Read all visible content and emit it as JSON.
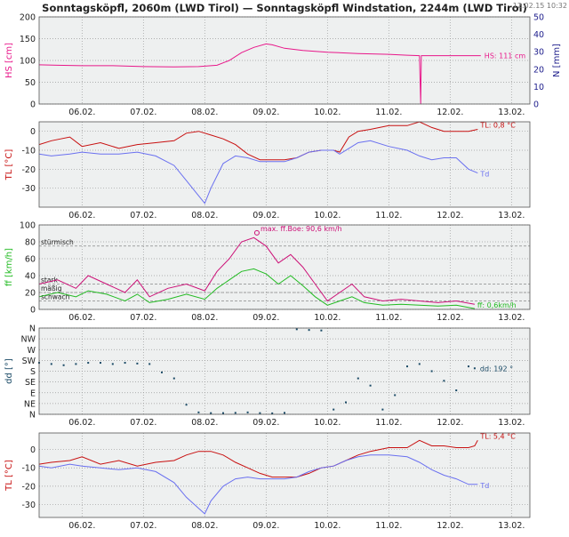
{
  "header": {
    "title": "Sonntagsköpfl, 2060m (LWD Tirol) — Sonntagsköpfl Windstation, 2244m (LWD Tirol)",
    "timestamp": "12.02.15 10:32"
  },
  "colors": {
    "hs": "#e8178a",
    "tl": "#c81010",
    "td": "#6a70f0",
    "ff": "#22bb22",
    "boe": "#cc1077",
    "dd": "#1a4a66",
    "panel_bg": "#eef0f0",
    "grid": "#999999",
    "axis_text": "#222222",
    "right_axis": "#1e1e8c"
  },
  "chart_data": [
    {
      "id": "snow",
      "type": "line",
      "xlabel": "",
      "ylabel": "HS [cm]",
      "y2label": "N [mm]",
      "ylim": [
        0,
        200
      ],
      "y2lim": [
        0,
        50
      ],
      "yticks": [
        0,
        50,
        100,
        150,
        200
      ],
      "y2ticks": [
        0,
        10,
        20,
        30,
        40,
        50
      ],
      "xlim": [
        5.3,
        13.3
      ],
      "xticks": [
        6,
        7,
        8,
        9,
        10,
        11,
        12,
        13
      ],
      "xtick_labels": [
        "06.02.",
        "07.02.",
        "08.02.",
        "09.02.",
        "10.02.",
        "11.02.",
        "12.02.",
        "13.02."
      ],
      "grid": true,
      "label_text": "HS: 111 cm",
      "series": [
        {
          "key": "hs",
          "x": [
            5.3,
            5.6,
            6.0,
            6.5,
            7.0,
            7.5,
            7.9,
            8.2,
            8.4,
            8.6,
            8.8,
            9.0,
            9.1,
            9.3,
            9.6,
            10.0,
            10.5,
            11.0,
            11.3,
            11.5,
            11.52,
            11.53,
            11.56,
            11.8,
            12.0,
            12.3,
            12.5
          ],
          "y": [
            90,
            89,
            88,
            88,
            86,
            85,
            86,
            89,
            100,
            118,
            130,
            138,
            136,
            128,
            123,
            119,
            116,
            114,
            112,
            111,
            0,
            111,
            111,
            111,
            111,
            111,
            111
          ]
        }
      ]
    },
    {
      "id": "temp1",
      "type": "line",
      "xlabel": "",
      "ylabel": "TL [°C]",
      "ylim": [
        -40,
        5
      ],
      "yticks": [
        -30,
        -20,
        -10,
        0
      ],
      "xlim": [
        5.3,
        13.3
      ],
      "xticks": [
        6,
        7,
        8,
        9,
        10,
        11,
        12,
        13
      ],
      "xtick_labels": [
        "06.02.",
        "07.02.",
        "08.02.",
        "09.02.",
        "10.02.",
        "11.02.",
        "12.02.",
        "13.02."
      ],
      "grid": true,
      "label_tl": "TL: 0,8 °C",
      "label_td": "Td",
      "series": [
        {
          "key": "tl",
          "x": [
            5.3,
            5.5,
            5.8,
            6.0,
            6.3,
            6.6,
            6.9,
            7.2,
            7.5,
            7.7,
            7.9,
            8.1,
            8.3,
            8.5,
            8.7,
            8.9,
            9.1,
            9.3,
            9.5,
            9.7,
            9.9,
            10.1,
            10.2,
            10.35,
            10.5,
            10.7,
            11.0,
            11.3,
            11.5,
            11.7,
            11.9,
            12.1,
            12.3,
            12.45
          ],
          "y": [
            -7,
            -5,
            -3,
            -8,
            -6,
            -9,
            -7,
            -6,
            -5,
            -1,
            0,
            -2,
            -4,
            -7,
            -12,
            -15,
            -15,
            -15,
            -14,
            -11,
            -10,
            -10,
            -11,
            -3,
            0,
            1,
            3,
            3,
            5,
            2,
            0,
            0,
            0,
            1
          ]
        },
        {
          "key": "td",
          "x": [
            5.3,
            5.5,
            5.8,
            6.0,
            6.3,
            6.6,
            6.9,
            7.2,
            7.5,
            7.7,
            7.9,
            8.0,
            8.1,
            8.3,
            8.5,
            8.7,
            8.9,
            9.1,
            9.3,
            9.5,
            9.7,
            9.9,
            10.1,
            10.2,
            10.35,
            10.5,
            10.7,
            11.0,
            11.3,
            11.5,
            11.7,
            11.9,
            12.1,
            12.3,
            12.45
          ],
          "y": [
            -12,
            -13,
            -12,
            -11,
            -12,
            -12,
            -11,
            -13,
            -18,
            -26,
            -34,
            -38,
            -30,
            -17,
            -13,
            -14,
            -16,
            -16,
            -16,
            -14,
            -11,
            -10,
            -10,
            -12,
            -9,
            -6,
            -5,
            -8,
            -10,
            -13,
            -15,
            -14,
            -14,
            -20,
            -22
          ]
        }
      ]
    },
    {
      "id": "wind",
      "type": "line",
      "xlabel": "",
      "ylabel": "ff [km/h]",
      "ylim": [
        0,
        100
      ],
      "yticks": [
        0,
        20,
        40,
        60,
        80,
        100
      ],
      "xlim": [
        5.3,
        13.3
      ],
      "xticks": [
        6,
        7,
        8,
        9,
        10,
        11,
        12,
        13
      ],
      "xtick_labels": [
        "06.02.",
        "07.02.",
        "08.02.",
        "09.02.",
        "10.02.",
        "11.02.",
        "12.02.",
        "13.02."
      ],
      "grid": true,
      "thresholds": [
        {
          "value": 75,
          "label": "stürmisch"
        },
        {
          "value": 30,
          "label": "stark"
        },
        {
          "value": 20,
          "label": "mäßig"
        },
        {
          "value": 10,
          "label": "schwach"
        }
      ],
      "max_label": "max. ff.Boe: 90,6 km/h",
      "max_point": [
        8.85,
        90.6
      ],
      "current_label": "ff: 0,6km/h",
      "series": [
        {
          "key": "boe",
          "x": [
            5.3,
            5.6,
            5.9,
            6.1,
            6.4,
            6.7,
            6.9,
            7.1,
            7.4,
            7.7,
            8.0,
            8.2,
            8.4,
            8.6,
            8.8,
            9.0,
            9.2,
            9.4,
            9.6,
            9.8,
            10.0,
            10.2,
            10.4,
            10.6,
            10.9,
            11.2,
            11.5,
            11.8,
            12.1,
            12.4
          ],
          "y": [
            30,
            35,
            25,
            40,
            30,
            20,
            35,
            15,
            25,
            30,
            22,
            45,
            60,
            80,
            85,
            75,
            55,
            65,
            50,
            30,
            10,
            20,
            30,
            15,
            10,
            12,
            10,
            8,
            10,
            6
          ]
        },
        {
          "key": "ff",
          "x": [
            5.3,
            5.6,
            5.9,
            6.1,
            6.4,
            6.7,
            6.9,
            7.1,
            7.4,
            7.7,
            8.0,
            8.2,
            8.4,
            8.6,
            8.8,
            9.0,
            9.2,
            9.4,
            9.6,
            9.8,
            10.0,
            10.2,
            10.4,
            10.6,
            10.9,
            11.2,
            11.5,
            11.8,
            12.1,
            12.4
          ],
          "y": [
            15,
            20,
            15,
            22,
            18,
            10,
            18,
            8,
            12,
            18,
            12,
            25,
            35,
            45,
            48,
            42,
            30,
            40,
            28,
            15,
            5,
            10,
            15,
            8,
            5,
            6,
            5,
            4,
            5,
            1
          ]
        }
      ]
    },
    {
      "id": "direction",
      "type": "scatter",
      "xlabel": "",
      "ylabel": "dd [°]",
      "ylim": [
        0,
        360
      ],
      "yticks": [
        0,
        45,
        90,
        135,
        180,
        225,
        270,
        315,
        360
      ],
      "ytick_labels": [
        "N",
        "NE",
        "E",
        "SE",
        "S",
        "SW",
        "W",
        "NW",
        "N"
      ],
      "xlim": [
        5.3,
        13.3
      ],
      "xticks": [
        6,
        7,
        8,
        9,
        10,
        11,
        12,
        13
      ],
      "xtick_labels": [
        "06.02.",
        "07.02.",
        "08.02.",
        "09.02.",
        "10.02.",
        "11.02.",
        "12.02.",
        "13.02."
      ],
      "grid": true,
      "label_text": "dd: 192 °",
      "series": [
        {
          "key": "dd",
          "x": [
            5.3,
            5.5,
            5.7,
            5.9,
            6.1,
            6.3,
            6.5,
            6.7,
            6.9,
            7.1,
            7.3,
            7.5,
            7.7,
            7.9,
            8.1,
            8.3,
            8.5,
            8.7,
            8.9,
            9.1,
            9.3,
            9.5,
            9.7,
            9.9,
            10.1,
            10.3,
            10.5,
            10.7,
            10.9,
            11.1,
            11.3,
            11.5,
            11.7,
            11.9,
            12.1,
            12.3,
            12.4
          ],
          "y": [
            215,
            210,
            205,
            210,
            215,
            215,
            210,
            215,
            212,
            210,
            175,
            150,
            40,
            8,
            5,
            5,
            6,
            8,
            5,
            4,
            6,
            355,
            352,
            350,
            20,
            50,
            150,
            120,
            20,
            80,
            200,
            210,
            180,
            140,
            100,
            200,
            192
          ]
        }
      ]
    },
    {
      "id": "temp2",
      "type": "line",
      "xlabel": "",
      "ylabel": "TL [°C]",
      "ylim": [
        -37,
        9
      ],
      "yticks": [
        -30,
        -20,
        -10,
        0
      ],
      "xlim": [
        5.3,
        13.3
      ],
      "xticks": [
        6,
        7,
        8,
        9,
        10,
        11,
        12,
        13
      ],
      "xtick_labels": [
        "06.02.",
        "07.02.",
        "08.02.",
        "09.02.",
        "10.02.",
        "11.02.",
        "12.02.",
        "13.02."
      ],
      "grid": true,
      "label_tl": "TL: 5,4 °C",
      "label_td": "Td",
      "series": [
        {
          "key": "tl",
          "x": [
            5.3,
            5.5,
            5.8,
            6.0,
            6.3,
            6.6,
            6.9,
            7.2,
            7.5,
            7.7,
            7.9,
            8.1,
            8.3,
            8.5,
            8.7,
            8.9,
            9.1,
            9.3,
            9.5,
            9.7,
            9.9,
            10.1,
            10.3,
            10.5,
            10.7,
            11.0,
            11.3,
            11.5,
            11.7,
            11.9,
            12.1,
            12.3,
            12.4,
            12.45
          ],
          "y": [
            -8,
            -7,
            -6,
            -4,
            -8,
            -6,
            -9,
            -7,
            -6,
            -3,
            -1,
            -1,
            -3,
            -7,
            -10,
            -13,
            -15,
            -15,
            -15,
            -13,
            -10,
            -9,
            -6,
            -3,
            -1,
            1,
            1,
            5,
            2,
            2,
            1,
            1,
            2,
            5
          ]
        },
        {
          "key": "td",
          "x": [
            5.3,
            5.5,
            5.8,
            6.0,
            6.3,
            6.6,
            6.9,
            7.2,
            7.5,
            7.7,
            7.9,
            8.0,
            8.1,
            8.3,
            8.5,
            8.7,
            8.9,
            9.1,
            9.3,
            9.5,
            9.7,
            9.9,
            10.1,
            10.3,
            10.5,
            10.7,
            11.0,
            11.3,
            11.5,
            11.7,
            11.9,
            12.1,
            12.3,
            12.45
          ],
          "y": [
            -9,
            -10,
            -8,
            -9,
            -10,
            -11,
            -10,
            -12,
            -18,
            -26,
            -32,
            -35,
            -28,
            -20,
            -16,
            -15,
            -16,
            -16,
            -16,
            -15,
            -12,
            -10,
            -9,
            -6,
            -4,
            -3,
            -3,
            -4,
            -7,
            -11,
            -14,
            -16,
            -19,
            -19
          ]
        }
      ]
    }
  ]
}
